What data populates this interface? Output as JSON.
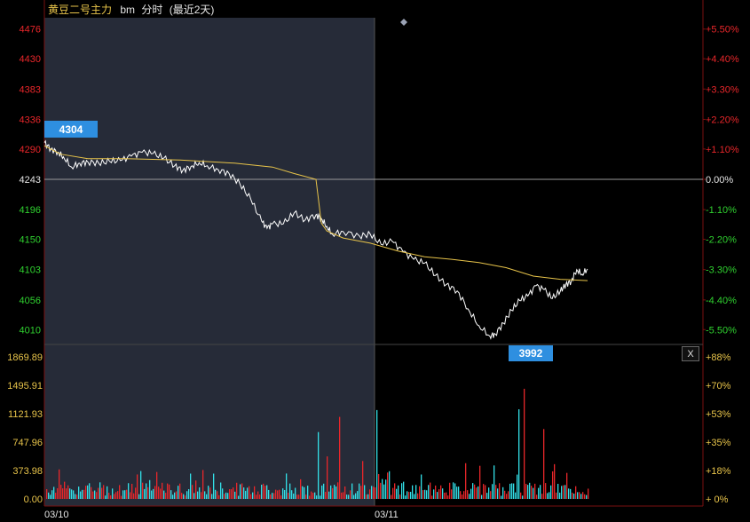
{
  "header": {
    "instrument": "黄豆二号主力",
    "code": "bm",
    "mode": "分时",
    "range": "(最近2天)"
  },
  "controls": {
    "close_label": "X"
  },
  "chart_data": {
    "type": "line",
    "dates": [
      "03/10",
      "03/11"
    ],
    "price_axis": {
      "ticks": [
        4476,
        4430,
        4383,
        4336,
        4290,
        4243,
        4196,
        4150,
        4103,
        4056,
        4010
      ],
      "base": 4243,
      "range": [
        3992,
        4490
      ]
    },
    "percent_axis": {
      "ticks": [
        "+5.50%",
        "+4.40%",
        "+3.30%",
        "+2.20%",
        "+1.10%",
        "0.00%",
        "-1.10%",
        "-2.20%",
        "-3.30%",
        "-4.40%",
        "-5.50%"
      ]
    },
    "volume_axis": {
      "ticks": [
        "1869.89",
        "1495.91",
        "1121.93",
        "747.96",
        "373.98",
        "0.00"
      ],
      "right_ticks": [
        "+88%",
        "+70%",
        "+53%",
        "+35%",
        "+18%",
        "+ 0%"
      ],
      "max": 1990
    },
    "labels": {
      "high": "4304",
      "low": "3992"
    },
    "series": [
      {
        "kind": "price",
        "color": "#ffffff",
        "x": [
          0,
          0.012,
          0.025,
          0.035,
          0.05,
          0.065,
          0.08,
          0.1,
          0.12,
          0.14,
          0.16,
          0.18,
          0.2,
          0.22,
          0.24,
          0.255,
          0.27,
          0.285,
          0.3,
          0.32,
          0.34,
          0.36,
          0.38,
          0.4,
          0.41,
          0.42,
          0.44,
          0.46,
          0.48,
          0.5,
          0.51,
          0.52,
          0.53,
          0.55,
          0.58,
          0.6,
          0.62,
          0.64,
          0.66,
          0.68,
          0.7,
          0.72,
          0.74,
          0.76,
          0.78,
          0.8,
          0.82,
          0.83,
          0.845,
          0.86,
          0.875,
          0.89,
          0.905,
          0.92,
          0.935,
          0.95,
          0.96,
          0.97,
          0.98,
          0.99,
          1.0
        ],
        "y": [
          4300,
          4290,
          4285,
          4278,
          4262,
          4268,
          4270,
          4268,
          4271,
          4272,
          4279,
          4285,
          4283,
          4276,
          4264,
          4257,
          4263,
          4269,
          4264,
          4258,
          4252,
          4236,
          4212,
          4178,
          4167,
          4174,
          4174,
          4191,
          4180,
          4188,
          4182,
          4170,
          4158,
          4162,
          4155,
          4158,
          4142,
          4147,
          4131,
          4119,
          4113,
          4094,
          4080,
          4070,
          4042,
          4016,
          4000,
          4003,
          4020,
          4040,
          4055,
          4062,
          4078,
          4072,
          4058,
          4070,
          4080,
          4085,
          4103,
          4096,
          4104
        ]
      },
      {
        "kind": "average",
        "color": "#e8c44a",
        "x": [
          0,
          0.03,
          0.08,
          0.15,
          0.25,
          0.35,
          0.42,
          0.46,
          0.5,
          0.51,
          0.52,
          0.55,
          0.6,
          0.65,
          0.7,
          0.75,
          0.8,
          0.85,
          0.9,
          0.95,
          1.0
        ],
        "y": [
          4295,
          4282,
          4275,
          4275,
          4273,
          4268,
          4262,
          4252,
          4243,
          4175,
          4163,
          4152,
          4144,
          4132,
          4123,
          4119,
          4114,
          4106,
          4093,
          4088,
          4086
        ]
      }
    ]
  }
}
